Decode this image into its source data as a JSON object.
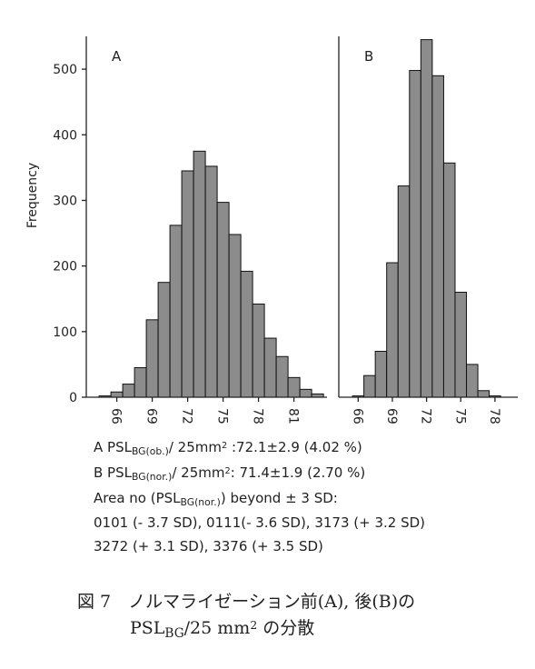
{
  "chart_data": [
    {
      "type": "histogram",
      "panel": "A",
      "y_label": "Frequency",
      "color": "#8c8c8c",
      "bins": [
        64.5,
        65.5,
        66.5,
        67.5,
        68.5,
        69.5,
        70.5,
        71.5,
        72.5,
        73.5,
        74.5,
        75.5,
        76.5,
        77.5,
        78.5,
        79.5,
        80.5,
        81.5,
        82.5,
        83.5
      ],
      "counts": [
        2,
        8,
        20,
        45,
        118,
        175,
        262,
        345,
        375,
        352,
        297,
        248,
        192,
        142,
        90,
        62,
        30,
        12,
        5
      ],
      "xlim": [
        63.8,
        83.8
      ],
      "xticks": [
        66,
        69,
        72,
        75,
        78,
        81
      ],
      "ylim": [
        0,
        550
      ],
      "yticks": [
        0,
        100,
        200,
        300,
        400,
        500
      ]
    },
    {
      "type": "histogram",
      "panel": "B",
      "color": "#8c8c8c",
      "bins": [
        65.5,
        66.5,
        67.5,
        68.5,
        69.5,
        70.5,
        71.5,
        72.5,
        73.5,
        74.5,
        75.5,
        76.5,
        77.5,
        78.5
      ],
      "counts": [
        2,
        33,
        70,
        205,
        322,
        498,
        545,
        490,
        357,
        160,
        50,
        10,
        2
      ],
      "xlim": [
        64.3,
        80.0
      ],
      "xticks": [
        66,
        69,
        72,
        75,
        78
      ],
      "ylim": [
        0,
        550
      ]
    }
  ],
  "caption": {
    "lines": [
      [
        {
          "text": "A  PSL"
        },
        {
          "sub": "BG(ob.)"
        },
        {
          "text": "/ 25mm"
        },
        {
          "sup": "2"
        },
        {
          "text": " :72.1±2.9 (4.02 %)"
        }
      ],
      [
        {
          "text": "B  PSL"
        },
        {
          "sub": "BG(nor.)"
        },
        {
          "text": "/ 25mm"
        },
        {
          "sup": "2"
        },
        {
          "text": ": 71.4±1.9 (2.70 %)"
        }
      ],
      [
        {
          "text": "Area no (PSL"
        },
        {
          "sub": "BG(nor.)"
        },
        {
          "text": ") beyond ± 3 SD:"
        }
      ],
      [
        {
          "text": "0101 (- 3.7 SD), 0111(- 3.6 SD), 3173 (+ 3.2 SD)"
        }
      ],
      [
        {
          "text": "3272 (+ 3.1 SD), 3376 (+ 3.5 SD)"
        }
      ]
    ],
    "figure": [
      [
        {
          "text": "図 7　ノルマライゼーション前(A), 後(B)の"
        }
      ],
      [
        {
          "text": "PSL"
        },
        {
          "sub": "BG"
        },
        {
          "text": "/25 mm"
        },
        {
          "sup": "2"
        },
        {
          "text": " の分散"
        }
      ]
    ]
  }
}
